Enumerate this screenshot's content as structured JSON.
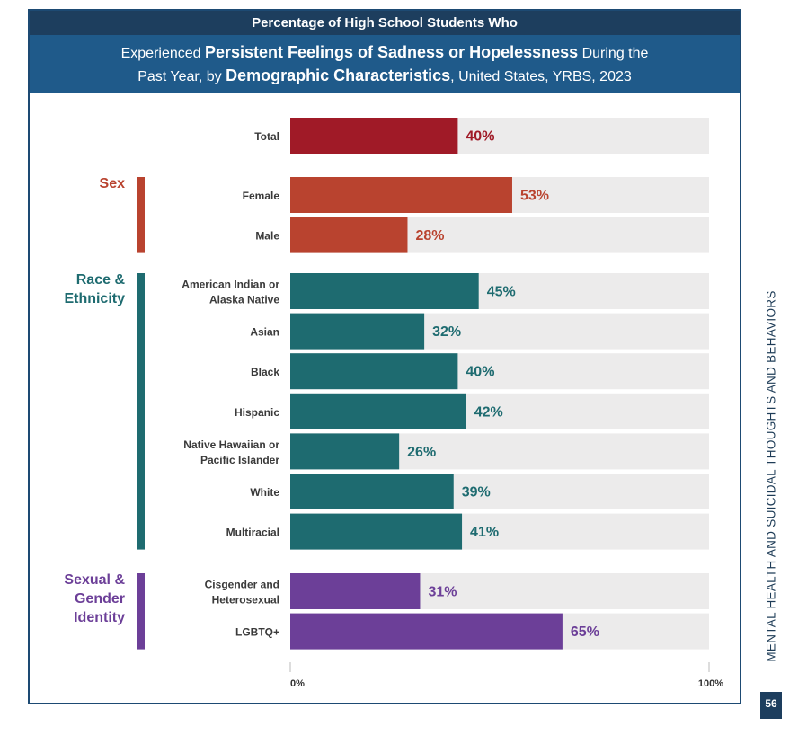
{
  "header": {
    "line1": "Percentage of High School Students Who",
    "main_pre": "Experienced ",
    "main_bold1": "Persistent Feelings of Sadness or Hopelessness",
    "main_mid": " During the",
    "main_line2_pre": "Past Year, by ",
    "main_bold2": "Demographic Characteristics",
    "main_post": ", United States, YRBS, 2023"
  },
  "side_label": "MENTAL HEALTH AND SUICIDAL THOUGHTS AND BEHAVIORS",
  "page_number": "56",
  "colors": {
    "total": "#a01a27",
    "sex": "#b9432f",
    "race": "#1e6b70",
    "identity": "#6c3f98",
    "track": "#ecebeb"
  },
  "chart_data": {
    "type": "bar",
    "orientation": "horizontal",
    "title": "Percentage of High School Students Who Experienced Persistent Feelings of Sadness or Hopelessness During the Past Year, by Demographic Characteristics, United States, YRBS, 2023",
    "xlim": [
      0,
      100
    ],
    "x_tick_labels": [
      "0%",
      "100%"
    ],
    "groups": [
      {
        "name": "Total",
        "label_lines": [],
        "color_key": "total",
        "bars": [
          {
            "label_lines": [
              "Total"
            ],
            "value": 40,
            "value_label": "40%"
          }
        ]
      },
      {
        "name": "Sex",
        "label_lines": [
          "Sex"
        ],
        "color_key": "sex",
        "bars": [
          {
            "label_lines": [
              "Female"
            ],
            "value": 53,
            "value_label": "53%"
          },
          {
            "label_lines": [
              "Male"
            ],
            "value": 28,
            "value_label": "28%"
          }
        ]
      },
      {
        "name": "Race & Ethnicity",
        "label_lines": [
          "Race &",
          "Ethnicity"
        ],
        "color_key": "race",
        "bars": [
          {
            "label_lines": [
              "American Indian or",
              "Alaska Native"
            ],
            "value": 45,
            "value_label": "45%"
          },
          {
            "label_lines": [
              "Asian"
            ],
            "value": 32,
            "value_label": "32%"
          },
          {
            "label_lines": [
              "Black"
            ],
            "value": 40,
            "value_label": "40%"
          },
          {
            "label_lines": [
              "Hispanic"
            ],
            "value": 42,
            "value_label": "42%"
          },
          {
            "label_lines": [
              "Native Hawaiian or",
              "Pacific Islander"
            ],
            "value": 26,
            "value_label": "26%"
          },
          {
            "label_lines": [
              "White"
            ],
            "value": 39,
            "value_label": "39%"
          },
          {
            "label_lines": [
              "Multiracial"
            ],
            "value": 41,
            "value_label": "41%"
          }
        ]
      },
      {
        "name": "Sexual & Gender Identity",
        "label_lines": [
          "Sexual &",
          "Gender",
          "Identity"
        ],
        "color_key": "identity",
        "bars": [
          {
            "label_lines": [
              "Cisgender and",
              "Heterosexual"
            ],
            "value": 31,
            "value_label": "31%"
          },
          {
            "label_lines": [
              "LGBTQ+"
            ],
            "value": 65,
            "value_label": "65%"
          }
        ]
      }
    ]
  }
}
